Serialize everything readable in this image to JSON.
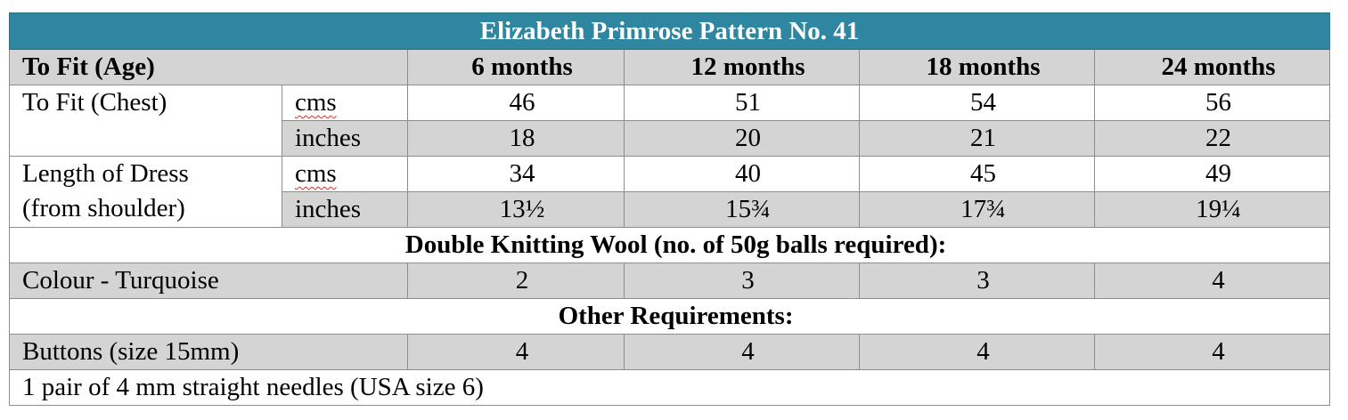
{
  "title": "Elizabeth Primrose Pattern No. 41",
  "age_header": {
    "label": "To Fit (Age)",
    "sizes": [
      "6 months",
      "12 months",
      "18 months",
      "24 months"
    ]
  },
  "chest": {
    "label": "To Fit (Chest)",
    "rows": [
      {
        "unit": "cms",
        "values": [
          "46",
          "51",
          "54",
          "56"
        ]
      },
      {
        "unit": "inches",
        "values": [
          "18",
          "20",
          "21",
          "22"
        ]
      }
    ]
  },
  "length": {
    "label_line1": "Length of Dress",
    "label_line2": "(from shoulder)",
    "rows": [
      {
        "unit": "cms",
        "values": [
          "34",
          "40",
          "45",
          "49"
        ]
      },
      {
        "unit": "inches",
        "values": [
          "13½",
          "15¾",
          "17¾",
          "19¼"
        ]
      }
    ]
  },
  "wool": {
    "heading": "Double Knitting Wool (no. of 50g balls required):",
    "label": "Colour - Turquoise",
    "values": [
      "2",
      "3",
      "3",
      "4"
    ]
  },
  "other": {
    "heading": "Other Requirements:",
    "buttons_label": "Buttons (size 15mm)",
    "buttons_values": [
      "4",
      "4",
      "4",
      "4"
    ],
    "needles": "1 pair of 4 mm straight needles (USA size 6)"
  }
}
